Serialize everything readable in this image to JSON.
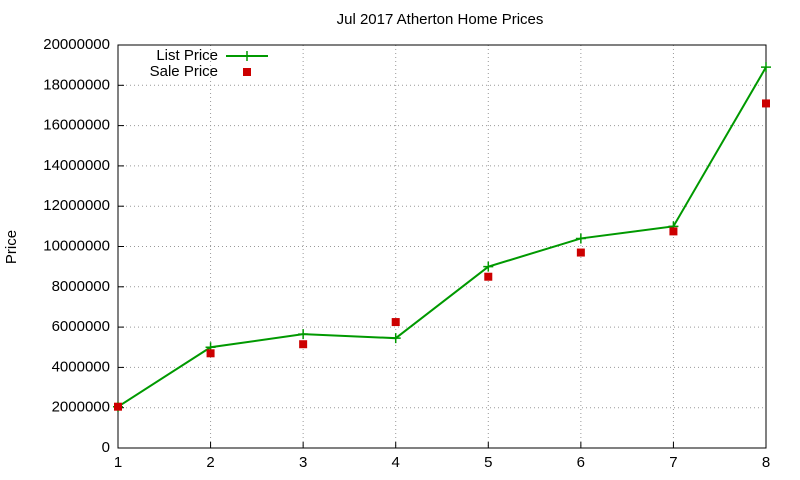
{
  "chart_data": {
    "type": "line",
    "title": "Jul 2017 Atherton Home Prices",
    "y_label": "Price",
    "x": [
      1,
      2,
      3,
      4,
      5,
      6,
      7,
      8
    ],
    "series": [
      {
        "name": "List Price",
        "color": "#009900",
        "mode": "linespoints",
        "values": [
          2050000,
          5000000,
          5650000,
          5450000,
          9000000,
          10400000,
          11000000,
          18900000
        ]
      },
      {
        "name": "Sale Price",
        "color": "#cc0000",
        "mode": "points",
        "values": [
          2050000,
          4700000,
          5150000,
          6250000,
          8500000,
          9700000,
          10750000,
          17100000
        ]
      }
    ],
    "xlim": [
      1,
      8
    ],
    "xticks": [
      1,
      2,
      3,
      4,
      5,
      6,
      7,
      8
    ],
    "ylim": [
      0,
      20000000
    ],
    "yticks": [
      0,
      2000000,
      4000000,
      6000000,
      8000000,
      10000000,
      12000000,
      14000000,
      16000000,
      18000000,
      20000000
    ],
    "grid": true,
    "legend": "top-left"
  }
}
